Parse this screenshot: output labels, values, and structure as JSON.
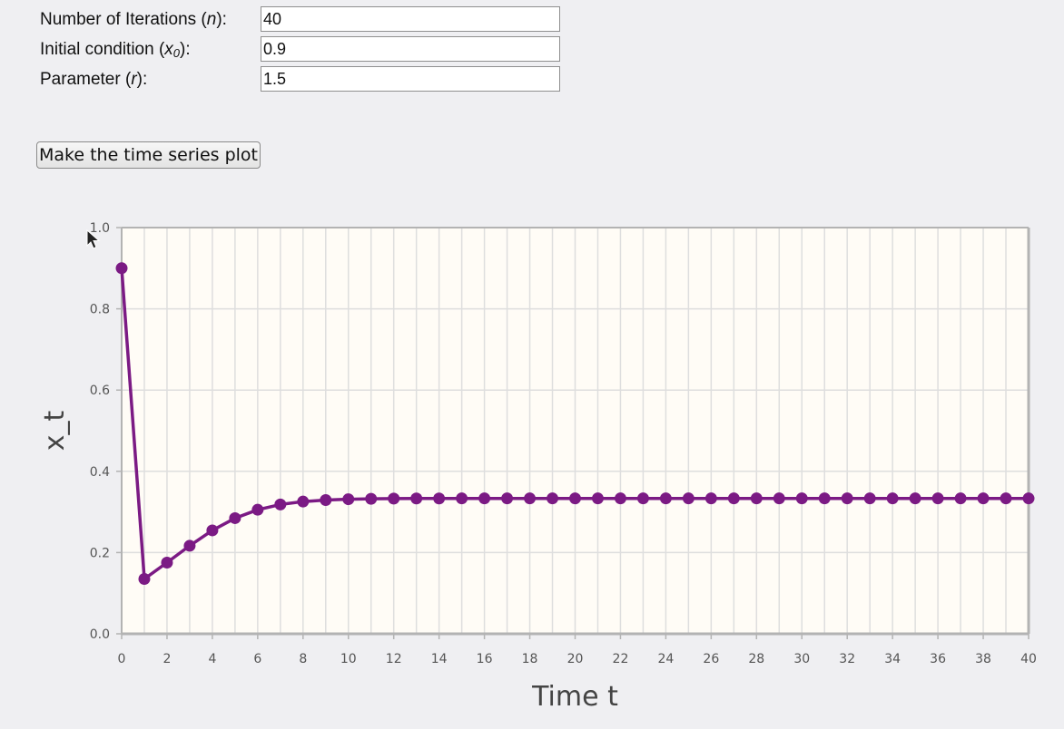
{
  "form": {
    "n_label_prefix": "Number of Iterations (",
    "n_label_var": "n",
    "n_label_suffix": "):",
    "n_value": "40",
    "x0_label_prefix": "Initial condition (",
    "x0_label_var": "x",
    "x0_label_sub": "0",
    "x0_label_suffix": "):",
    "x0_value": "0.9",
    "r_label_prefix": "Parameter (",
    "r_label_var": "r",
    "r_label_suffix": "):",
    "r_value": "1.5",
    "button_label": "Make the time series plot"
  },
  "chart_data": {
    "type": "line",
    "title": "",
    "xlabel": "Time t",
    "ylabel": "x_t",
    "xlim": [
      0,
      40
    ],
    "ylim": [
      0,
      1.0
    ],
    "x_ticks": [
      0,
      2,
      4,
      6,
      8,
      10,
      12,
      14,
      16,
      18,
      20,
      22,
      24,
      26,
      28,
      30,
      32,
      34,
      36,
      38,
      40
    ],
    "y_ticks": [
      "0.0",
      "0.2",
      "0.4",
      "0.6",
      "0.8",
      "1.0"
    ],
    "grid": true,
    "line_color": "#7b1a84",
    "plot_background": "#fffcf6",
    "series": [
      {
        "x": [
          0,
          1,
          2,
          3,
          4,
          5,
          6,
          7,
          8,
          9,
          10,
          11,
          12,
          13,
          14,
          15,
          16,
          17,
          18,
          19,
          20,
          21,
          22,
          23,
          24,
          25,
          26,
          27,
          28,
          29,
          30,
          31,
          32,
          33,
          34,
          35,
          36,
          37,
          38,
          39,
          40
        ],
        "y": [
          0.9,
          0.135,
          0.1752,
          0.2167,
          0.2546,
          0.2847,
          0.3054,
          0.3183,
          0.3255,
          0.3293,
          0.3313,
          0.3323,
          0.3328,
          0.3331,
          0.3332,
          0.3333,
          0.3333,
          0.3333,
          0.3333,
          0.3333,
          0.3333,
          0.3333,
          0.3333,
          0.3333,
          0.3333,
          0.3333,
          0.3333,
          0.3333,
          0.3333,
          0.3333,
          0.3333,
          0.3333,
          0.3333,
          0.3333,
          0.3333,
          0.3333,
          0.3333,
          0.3333,
          0.3333,
          0.3333,
          0.3333
        ]
      }
    ]
  }
}
